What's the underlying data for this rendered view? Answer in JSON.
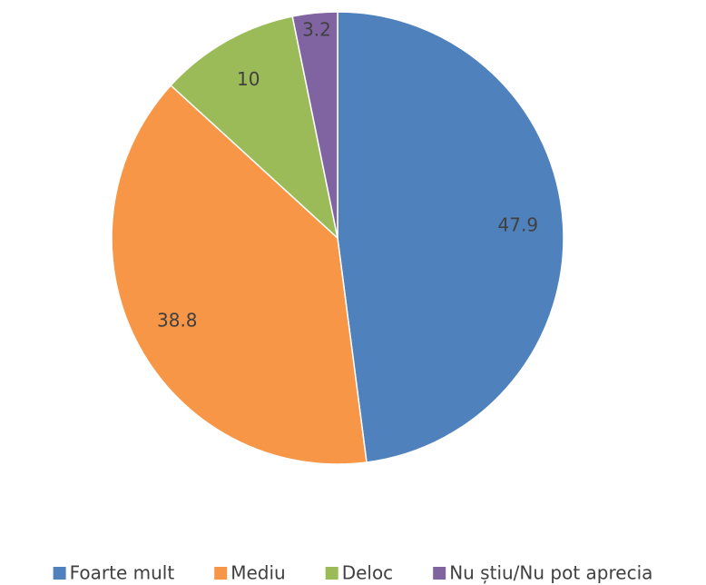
{
  "chart_data": {
    "type": "pie",
    "categories": [
      "Foarte mult",
      "Mediu",
      "Deloc",
      "Nu știu/Nu pot aprecia"
    ],
    "values": [
      47.9,
      38.8,
      10,
      3.2
    ],
    "colors": [
      "#4f81bd",
      "#f79646",
      "#9bbb59",
      "#8064a2"
    ],
    "legend": "bottom"
  }
}
